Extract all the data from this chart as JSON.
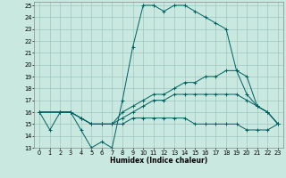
{
  "xlabel": "Humidex (Indice chaleur)",
  "xlim": [
    -0.5,
    23.5
  ],
  "ylim": [
    13,
    25.3
  ],
  "yticks": [
    13,
    14,
    15,
    16,
    17,
    18,
    19,
    20,
    21,
    22,
    23,
    24,
    25
  ],
  "xticks": [
    0,
    1,
    2,
    3,
    4,
    5,
    6,
    7,
    8,
    9,
    10,
    11,
    12,
    13,
    14,
    15,
    16,
    17,
    18,
    19,
    20,
    21,
    22,
    23
  ],
  "bg_color": "#c8e8e0",
  "grid_color": "#a0c8c0",
  "line_color": "#006060",
  "series": [
    {
      "x": [
        0,
        1,
        2,
        3,
        4,
        5,
        6,
        7,
        8,
        9,
        10,
        11,
        12,
        13,
        14,
        15,
        16,
        17,
        18,
        19,
        20,
        21,
        22,
        23
      ],
      "y": [
        16,
        14.5,
        16,
        16,
        14.5,
        13,
        13.5,
        13,
        17,
        21.5,
        25,
        25,
        24.5,
        25,
        25,
        24.5,
        24,
        23.5,
        23,
        19.5,
        19,
        16.5,
        16,
        15
      ]
    },
    {
      "x": [
        0,
        2,
        3,
        4,
        5,
        6,
        7,
        8,
        9,
        10,
        11,
        12,
        13,
        14,
        15,
        16,
        17,
        18,
        19,
        20,
        21,
        22,
        23
      ],
      "y": [
        16,
        16,
        16,
        15.5,
        15,
        15,
        15,
        16,
        16.5,
        17,
        17.5,
        17.5,
        18,
        18.5,
        18.5,
        19,
        19,
        19.5,
        19.5,
        17.5,
        16.5,
        16,
        15
      ]
    },
    {
      "x": [
        0,
        2,
        3,
        4,
        5,
        6,
        7,
        8,
        9,
        10,
        11,
        12,
        13,
        14,
        15,
        16,
        17,
        18,
        19,
        20,
        21,
        22,
        23
      ],
      "y": [
        16,
        16,
        16,
        15.5,
        15,
        15,
        15,
        15.5,
        16,
        16.5,
        17,
        17,
        17.5,
        17.5,
        17.5,
        17.5,
        17.5,
        17.5,
        17.5,
        17,
        16.5,
        16,
        15
      ]
    },
    {
      "x": [
        0,
        2,
        3,
        4,
        5,
        6,
        7,
        8,
        9,
        10,
        11,
        12,
        13,
        14,
        15,
        16,
        17,
        18,
        19,
        20,
        21,
        22,
        23
      ],
      "y": [
        16,
        16,
        16,
        15.5,
        15,
        15,
        15,
        15,
        15.5,
        15.5,
        15.5,
        15.5,
        15.5,
        15.5,
        15,
        15,
        15,
        15,
        15,
        14.5,
        14.5,
        14.5,
        15
      ]
    }
  ]
}
